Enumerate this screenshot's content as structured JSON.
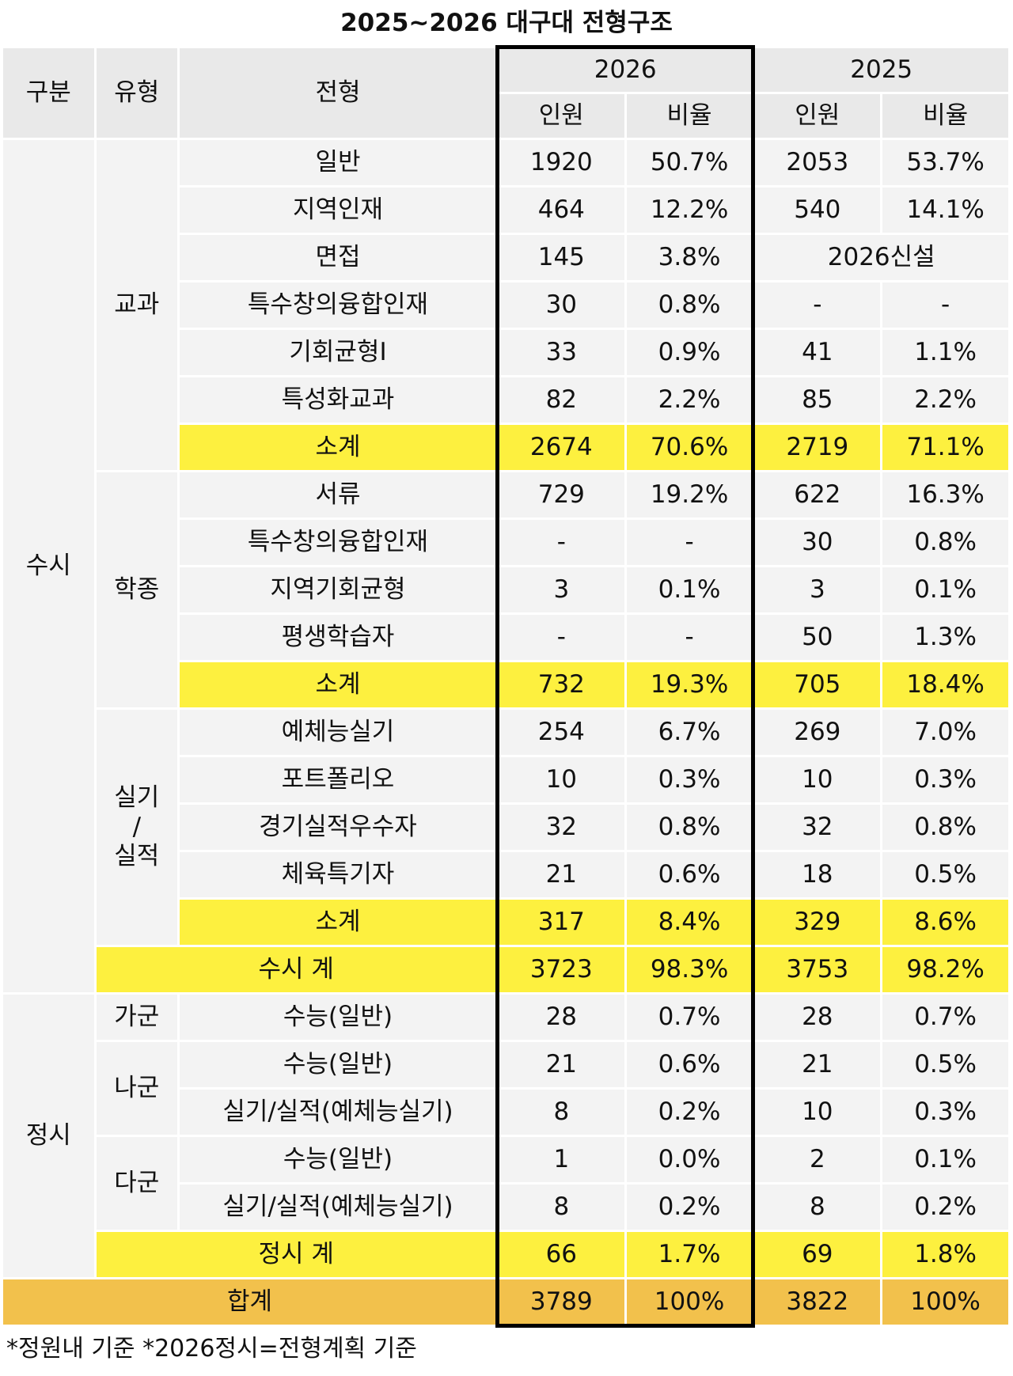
{
  "title": "2025~2026 대구대 전형구조",
  "header": {
    "col1": "구분",
    "col2": "유형",
    "col3": "전형",
    "year_a": "2026",
    "year_b": "2025",
    "sub": [
      "인원",
      "비율",
      "인원",
      "비율"
    ]
  },
  "sections": [
    {
      "name": "수시",
      "groups": [
        {
          "name": "교과",
          "rows": [
            [
              "일반",
              "1920",
              "50.7%",
              "2053",
              "53.7%"
            ],
            [
              "지역인재",
              "464",
              "12.2%",
              "540",
              "14.1%"
            ],
            [
              "면접",
              "145",
              "3.8%",
              "2026신설"
            ],
            [
              "특수창의융합인재",
              "30",
              "0.8%",
              "-",
              "-"
            ],
            [
              "기회균형Ⅰ",
              "33",
              "0.9%",
              "41",
              "1.1%"
            ],
            [
              "특성화교과",
              "82",
              "2.2%",
              "85",
              "2.2%"
            ]
          ],
          "subtotal": [
            "소계",
            "2674",
            "70.6%",
            "2719",
            "71.1%"
          ]
        },
        {
          "name": "학종",
          "rows": [
            [
              "서류",
              "729",
              "19.2%",
              "622",
              "16.3%"
            ],
            [
              "특수창의융합인재",
              "-",
              "-",
              "30",
              "0.8%"
            ],
            [
              "지역기회균형",
              "3",
              "0.1%",
              "3",
              "0.1%"
            ],
            [
              "평생학습자",
              "-",
              "-",
              "50",
              "1.3%"
            ]
          ],
          "subtotal": [
            "소계",
            "732",
            "19.3%",
            "705",
            "18.4%"
          ]
        },
        {
          "name": "실기\n/\n실적",
          "rows": [
            [
              "예체능실기",
              "254",
              "6.7%",
              "269",
              "7.0%"
            ],
            [
              "포트폴리오",
              "10",
              "0.3%",
              "10",
              "0.3%"
            ],
            [
              "경기실적우수자",
              "32",
              "0.8%",
              "32",
              "0.8%"
            ],
            [
              "체육특기자",
              "21",
              "0.6%",
              "18",
              "0.5%"
            ]
          ],
          "subtotal": [
            "소계",
            "317",
            "8.4%",
            "329",
            "8.6%"
          ]
        }
      ],
      "total": [
        "수시 계",
        "3723",
        "98.3%",
        "3753",
        "98.2%"
      ]
    },
    {
      "name": "정시",
      "groups": [
        {
          "name": "가군",
          "rows": [
            [
              "수능(일반)",
              "28",
              "0.7%",
              "28",
              "0.7%"
            ]
          ]
        },
        {
          "name": "나군",
          "rows": [
            [
              "수능(일반)",
              "21",
              "0.6%",
              "21",
              "0.5%"
            ],
            [
              "실기/실적(예체능실기)",
              "8",
              "0.2%",
              "10",
              "0.3%"
            ]
          ]
        },
        {
          "name": "다군",
          "rows": [
            [
              "수능(일반)",
              "1",
              "0.0%",
              "2",
              "0.1%"
            ],
            [
              "실기/실적(예체능실기)",
              "8",
              "0.2%",
              "8",
              "0.2%"
            ]
          ]
        }
      ],
      "total": [
        "정시 계",
        "66",
        "1.7%",
        "69",
        "1.8%"
      ]
    }
  ],
  "grand_total": [
    "합계",
    "3789",
    "100%",
    "3822",
    "100%"
  ],
  "footnote": "*정원내 기준 *2026정시=전형계획 기준"
}
